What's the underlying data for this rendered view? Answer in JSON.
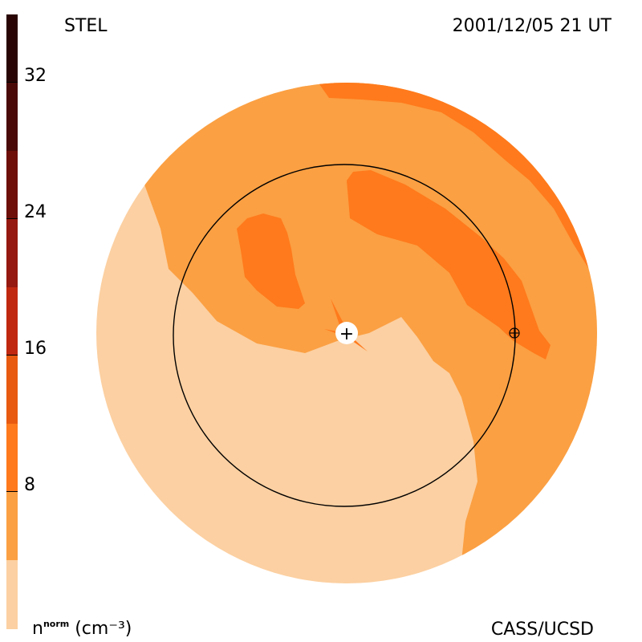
{
  "header": {
    "source_label": "STEL",
    "timestamp": "2001/12/05 21 UT"
  },
  "footer": {
    "units_label_main": "n",
    "units_label_sup": "norm",
    "units_label_rest": " (cm⁻³)",
    "credit": "CASS/UCSD"
  },
  "colorbar": {
    "ticks": [
      "32",
      "24",
      "16",
      "8"
    ],
    "segments": [
      {
        "color": "#2a0505"
      },
      {
        "color": "#4a0a08"
      },
      {
        "color": "#6e0f0a"
      },
      {
        "color": "#951910"
      },
      {
        "color": "#c02810"
      },
      {
        "color": "#e85a10"
      },
      {
        "color": "#ff7a1c"
      },
      {
        "color": "#fba043"
      },
      {
        "color": "#fcd0a2"
      }
    ]
  },
  "map_colors": {
    "light": "#fcd0a2",
    "medium": "#fba043",
    "dark": "#ff7a1c",
    "ring": "#000000",
    "center": "#ffffff"
  },
  "markers": {
    "center_symbol": "+",
    "earth_symbol": "⊕"
  }
}
